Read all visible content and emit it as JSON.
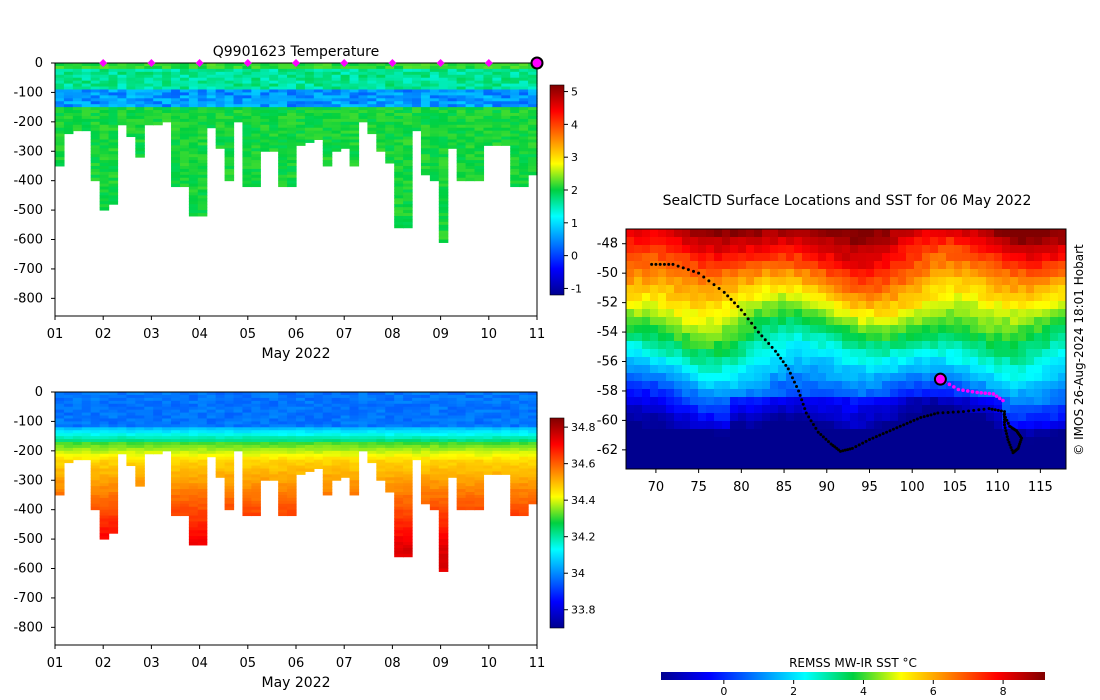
{
  "chart_data": [
    {
      "type": "heatmap",
      "title": "Q9901623  Temperature",
      "xlabel": "May 2022",
      "ylabel": "",
      "xlim": [
        1,
        11
      ],
      "ylim": [
        -860,
        0
      ],
      "x_ticks": [
        "01",
        "02",
        "03",
        "04",
        "05",
        "06",
        "07",
        "08",
        "09",
        "10",
        "11"
      ],
      "y_ticks": [
        "0",
        "-100",
        "-200",
        "-300",
        "-400",
        "-500",
        "-600",
        "-700",
        "-800"
      ],
      "colorbar": {
        "min": -1.2,
        "max": 5.2,
        "ticks": [
          "-1",
          "0",
          "1",
          "2",
          "3",
          "4",
          "5"
        ]
      },
      "colormap": "jet",
      "profile_markers_days": [
        2,
        3,
        4,
        5,
        6,
        7,
        8,
        9,
        10
      ],
      "current_marker_day": 11,
      "marker_color": "#ff00ff"
    },
    {
      "type": "heatmap",
      "title": "",
      "xlabel": "May 2022",
      "ylabel": "",
      "xlim": [
        1,
        11
      ],
      "ylim": [
        -860,
        0
      ],
      "x_ticks": [
        "01",
        "02",
        "03",
        "04",
        "05",
        "06",
        "07",
        "08",
        "09",
        "10",
        "11"
      ],
      "y_ticks": [
        "0",
        "-100",
        "-200",
        "-300",
        "-400",
        "-500",
        "-600",
        "-700",
        "-800"
      ],
      "colorbar": {
        "min": 33.7,
        "max": 34.85,
        "ticks": [
          "33.8",
          "34",
          "34.2",
          "34.4",
          "34.6",
          "34.8"
        ]
      },
      "colormap": "jet"
    },
    {
      "type": "heatmap",
      "title": "SealCTD Surface Locations and SST for 06 May 2022",
      "xlabel": "",
      "ylabel": "",
      "xlim": [
        66.5,
        118
      ],
      "ylim": [
        -63.3,
        -47
      ],
      "x_ticks": [
        "70",
        "75",
        "80",
        "85",
        "90",
        "95",
        "100",
        "105",
        "110",
        "115"
      ],
      "y_ticks": [
        "-48",
        "-50",
        "-52",
        "-54",
        "-56",
        "-58",
        "-60",
        "-62"
      ],
      "track": [
        [
          69.5,
          -49.4
        ],
        [
          72,
          -49.4
        ],
        [
          75,
          -50
        ],
        [
          78,
          -51.3
        ],
        [
          80,
          -52.5
        ],
        [
          82,
          -54
        ],
        [
          84,
          -55.3
        ],
        [
          85.5,
          -56.5
        ],
        [
          86.7,
          -58
        ],
        [
          87.6,
          -59.5
        ],
        [
          89,
          -60.8
        ],
        [
          90.5,
          -61.6
        ],
        [
          91.6,
          -62.1
        ],
        [
          93,
          -61.9
        ],
        [
          95,
          -61.3
        ],
        [
          97,
          -60.8
        ],
        [
          99,
          -60.3
        ],
        [
          101,
          -59.8
        ],
        [
          103,
          -59.5
        ],
        [
          106,
          -59.4
        ],
        [
          109,
          -59.2
        ],
        [
          110.8,
          -59.4
        ],
        [
          110.8,
          -60.3
        ],
        [
          111.2,
          -61.3
        ],
        [
          111.8,
          -62.2
        ],
        [
          112.4,
          -61.9
        ],
        [
          112.8,
          -61.2
        ],
        [
          112.2,
          -60.7
        ],
        [
          111.4,
          -60.4
        ],
        [
          110.6,
          -59.4
        ]
      ],
      "recent_track": [
        [
          103.3,
          -57.2
        ],
        [
          105.4,
          -57.9
        ],
        [
          107.6,
          -58.1
        ],
        [
          109.5,
          -58.2
        ],
        [
          111,
          -58.8
        ]
      ],
      "current_position": [
        103.3,
        -57.2
      ],
      "side_label": "© IMOS 26-Aug-2024 18:01 Hobart",
      "colorbar": {
        "label": "REMSS MW-IR SST °C",
        "min": -1.8,
        "max": 9.2,
        "ticks": [
          "0",
          "2",
          "4",
          "6",
          "8"
        ]
      },
      "colormap": "jet"
    }
  ]
}
